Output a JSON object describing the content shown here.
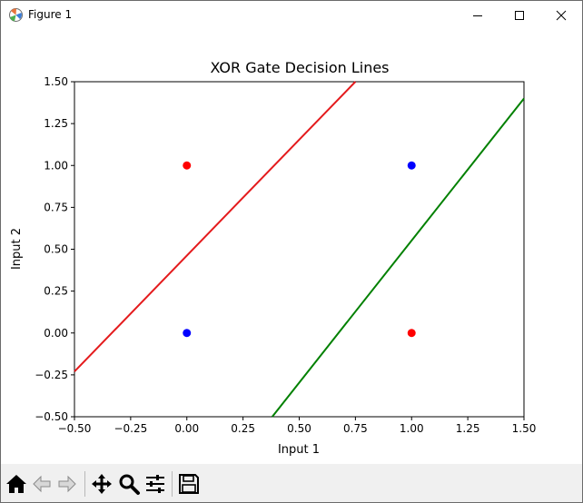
{
  "window": {
    "title": "Figure 1",
    "controls": {
      "minimize_icon": "minimize-icon",
      "maximize_icon": "maximize-icon",
      "close_icon": "close-icon"
    }
  },
  "toolbar": {
    "buttons": [
      {
        "name": "home",
        "icon": "home-icon"
      },
      {
        "name": "back",
        "icon": "arrow-left-icon"
      },
      {
        "name": "forward",
        "icon": "arrow-right-icon"
      },
      {
        "name": "pan",
        "icon": "move-icon"
      },
      {
        "name": "zoom",
        "icon": "magnifier-icon"
      },
      {
        "name": "configure-subplots",
        "icon": "sliders-icon"
      },
      {
        "name": "save",
        "icon": "floppy-disk-icon"
      }
    ]
  },
  "chart_data": {
    "type": "scatter",
    "title": "XOR Gate Decision Lines",
    "xlabel": "Input 1",
    "ylabel": "Input 2",
    "xlim": [
      -0.5,
      1.5
    ],
    "ylim": [
      -0.5,
      1.5
    ],
    "xticks": [
      -0.5,
      -0.25,
      0.0,
      0.25,
      0.5,
      0.75,
      1.0,
      1.25,
      1.5
    ],
    "yticks": [
      -0.5,
      -0.25,
      0.0,
      0.25,
      0.5,
      0.75,
      1.0,
      1.25,
      1.5
    ],
    "xtick_labels": [
      "−0.50",
      "−0.25",
      "0.00",
      "0.25",
      "0.50",
      "0.75",
      "1.00",
      "1.25",
      "1.50"
    ],
    "ytick_labels": [
      "−0.50",
      "−0.25",
      "0.00",
      "0.25",
      "0.50",
      "0.75",
      "1.00",
      "1.25",
      "1.50"
    ],
    "grid": false,
    "points": [
      {
        "x": 0,
        "y": 0,
        "color": "#0000ff"
      },
      {
        "x": 0,
        "y": 1,
        "color": "#ff0000"
      },
      {
        "x": 1,
        "y": 0,
        "color": "#ff0000"
      },
      {
        "x": 1,
        "y": 1,
        "color": "#0000ff"
      }
    ],
    "lines": [
      {
        "color": "#e41a1c",
        "x": [
          -0.5,
          0.75
        ],
        "y": [
          -0.23,
          1.5
        ]
      },
      {
        "color": "#008000",
        "x": [
          0.38,
          1.5
        ],
        "y": [
          -0.5,
          1.4
        ]
      }
    ]
  }
}
